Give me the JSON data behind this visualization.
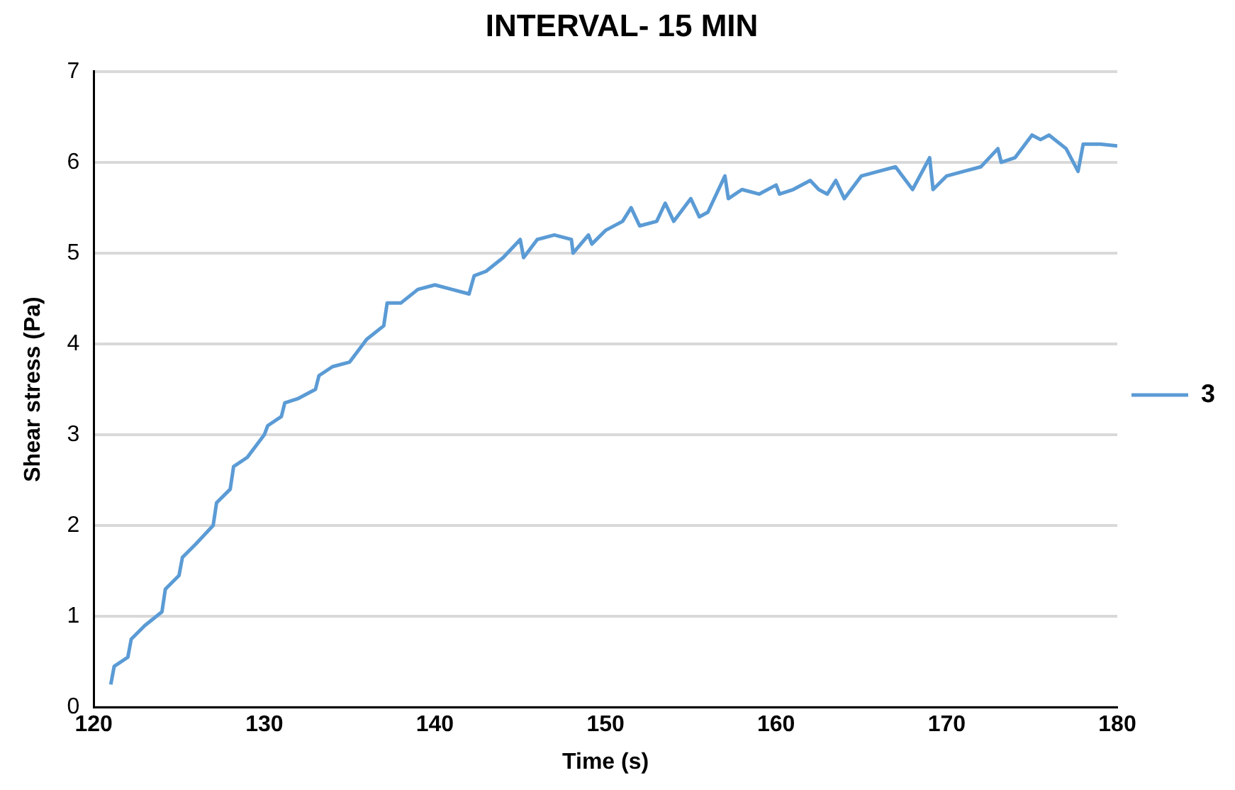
{
  "chart_data": {
    "type": "line",
    "title": "INTERVAL- 15 MIN",
    "xlabel": "Time (s)",
    "ylabel": "Shear stress (Pa)",
    "xlim": [
      120,
      180
    ],
    "xticks": [
      120,
      130,
      140,
      150,
      160,
      170,
      180
    ],
    "ylim": [
      0,
      7
    ],
    "yticks": [
      0,
      1,
      2,
      3,
      4,
      5,
      6,
      7
    ],
    "grid": "y",
    "legend": "right",
    "marker": "none",
    "series": [
      {
        "name": "3",
        "color": "#5b9bd5",
        "x": [
          121,
          121.2,
          122,
          122.2,
          123,
          124,
          124.2,
          125,
          125.2,
          126,
          127,
          127.2,
          128,
          128.2,
          129,
          130,
          130.2,
          131,
          131.2,
          132,
          133,
          133.2,
          134,
          135,
          136,
          137,
          137.2,
          138,
          139,
          140,
          141,
          142,
          142.3,
          143,
          144,
          145,
          145.2,
          146,
          147,
          148,
          148.1,
          149,
          149.2,
          150,
          151,
          151.5,
          152,
          153,
          153.5,
          154,
          155,
          155.5,
          156,
          157,
          157.2,
          158,
          159,
          160,
          160.2,
          161,
          162,
          162.5,
          163,
          163.5,
          164,
          165,
          166,
          167,
          168,
          169,
          169.2,
          170,
          171,
          172,
          173,
          173.2,
          174,
          175,
          175.5,
          176,
          177,
          177.7,
          178,
          179,
          180
        ],
        "values": [
          0.25,
          0.45,
          0.55,
          0.75,
          0.9,
          1.05,
          1.3,
          1.45,
          1.65,
          1.8,
          2.0,
          2.25,
          2.4,
          2.65,
          2.75,
          3.0,
          3.1,
          3.2,
          3.35,
          3.4,
          3.5,
          3.65,
          3.75,
          3.8,
          4.05,
          4.2,
          4.45,
          4.45,
          4.6,
          4.65,
          4.6,
          4.55,
          4.75,
          4.8,
          4.95,
          5.15,
          4.95,
          5.15,
          5.2,
          5.15,
          5.0,
          5.2,
          5.1,
          5.25,
          5.35,
          5.5,
          5.3,
          5.35,
          5.55,
          5.35,
          5.6,
          5.4,
          5.45,
          5.85,
          5.6,
          5.7,
          5.65,
          5.75,
          5.65,
          5.7,
          5.8,
          5.7,
          5.65,
          5.8,
          5.6,
          5.85,
          5.9,
          5.95,
          5.7,
          6.05,
          5.7,
          5.85,
          5.9,
          5.95,
          6.15,
          6.0,
          6.05,
          6.3,
          6.25,
          6.3,
          6.15,
          5.9,
          6.2,
          6.2,
          6.18
        ]
      }
    ]
  }
}
